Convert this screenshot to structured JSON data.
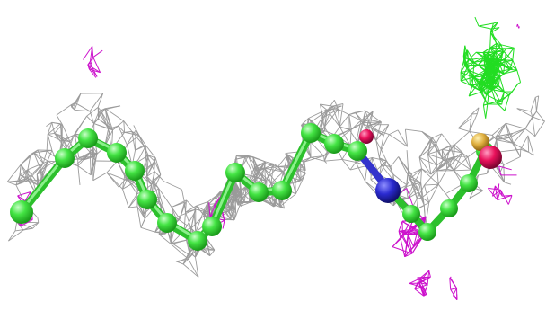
{
  "scene": {
    "description_label": "",
    "mesh_colors": {
      "density_mesh": "#8a8a8a",
      "positive_mesh": "#22dd22",
      "negative_mesh": "#cc11cc"
    },
    "atom_colors": {
      "carbon": "#33dd33",
      "nitrogen": "#2a2ad0",
      "oxygen": "#e8105a",
      "sulfur": "#e0b040"
    },
    "bond_color": "#33dd33"
  }
}
